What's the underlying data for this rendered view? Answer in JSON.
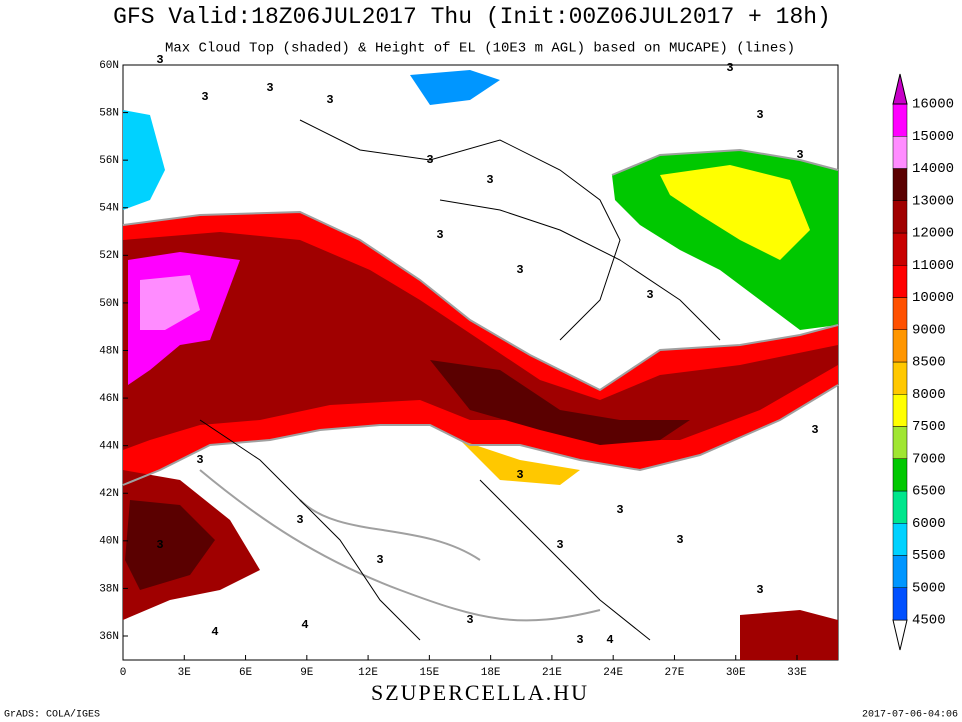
{
  "title": "GFS Valid:18Z06JUL2017 Thu (Init:00Z06JUL2017 + 18h)",
  "subtitle": "Max Cloud Top (shaded) & Height of EL (10E3 m AGL) based on MUCAPE) (lines)",
  "lat_labels": [
    "60N",
    "58N",
    "56N",
    "54N",
    "52N",
    "50N",
    "48N",
    "46N",
    "44N",
    "42N",
    "40N",
    "38N",
    "36N"
  ],
  "lon_labels": [
    "0",
    "3E",
    "6E",
    "9E",
    "12E",
    "15E",
    "18E",
    "21E",
    "24E",
    "27E",
    "30E",
    "33E"
  ],
  "colorbar": {
    "labels": [
      "4500",
      "5000",
      "5500",
      "6000",
      "6500",
      "7000",
      "7500",
      "8000",
      "8500",
      "9000",
      "10000",
      "11000",
      "12000",
      "13000",
      "14000",
      "15000",
      "16000"
    ],
    "colors": [
      "#ffffff",
      "#0050ff",
      "#0096ff",
      "#00d2ff",
      "#00e68c",
      "#00c800",
      "#a0e632",
      "#ffff00",
      "#ffc800",
      "#ff9600",
      "#ff5000",
      "#ff0000",
      "#c80000",
      "#a00000",
      "#5a0000",
      "#ff8cff",
      "#ff00ff",
      "#c800c8"
    ]
  },
  "contour_labels": [
    "3",
    "3",
    "3",
    "3",
    "3",
    "3",
    "3",
    "3",
    "3",
    "3",
    "3",
    "3",
    "3",
    "3",
    "3",
    "3",
    "3",
    "3",
    "3",
    "3",
    "3",
    "3",
    "3",
    "3",
    "4",
    "4",
    "4"
  ],
  "site": "SZUPERCELLA.HU",
  "credit": "GrADS: COLA/IGES",
  "timestamp": "2017-07-06-04:06"
}
